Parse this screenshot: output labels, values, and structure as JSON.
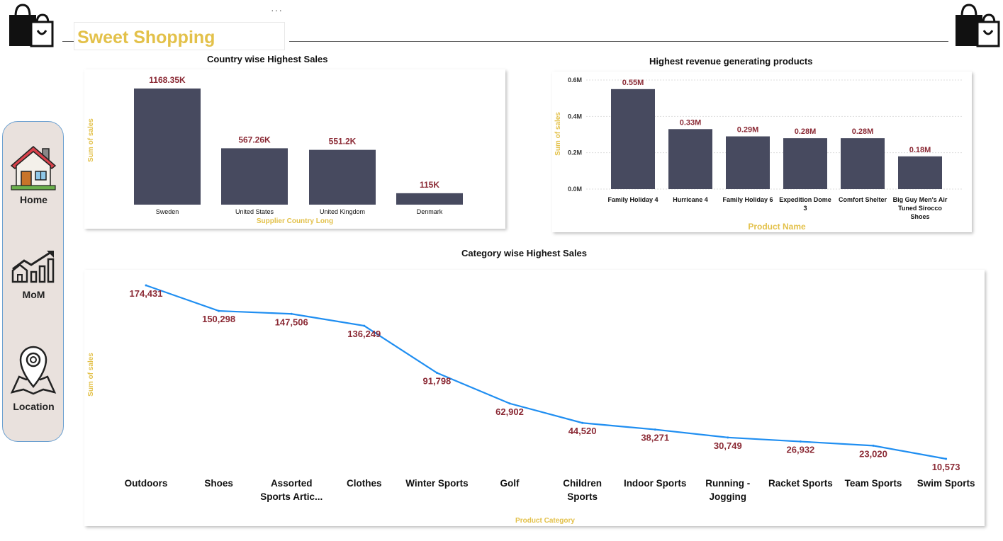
{
  "header": {
    "title": "Sweet Shopping",
    "more_label": "···",
    "bag_icon": "shopping-bag-icon"
  },
  "nav": {
    "items": [
      {
        "label": "Home",
        "icon": "house-icon"
      },
      {
        "label": "MoM",
        "icon": "growth-chart-icon"
      },
      {
        "label": "Location",
        "icon": "map-pin-icon"
      }
    ]
  },
  "chart_data": [
    {
      "type": "bar",
      "title": "Country wise Highest Sales",
      "xlabel": "Supplier Country Long",
      "ylabel": "Sum of sales",
      "categories": [
        "Sweden",
        "United States",
        "United Kingdom",
        "Denmark"
      ],
      "values": [
        1168.35,
        567.26,
        551.2,
        115
      ],
      "data_labels": [
        "1168.35K",
        "567.26K",
        "551.2K",
        "115K"
      ],
      "ylim": [
        0,
        1168.35
      ],
      "bar_color": "#474a5f",
      "label_color": "#8b2a35"
    },
    {
      "type": "bar",
      "title": "Highest revenue generating products",
      "xlabel": "Product Name",
      "ylabel": "Sum of sales",
      "categories": [
        "Family Holiday 4",
        "Hurricane 4",
        "Family Holiday 6",
        "Expedition Dome 3",
        "Comfort Shelter",
        "Big Guy Men's Air Tuned Sirocco Shoes"
      ],
      "category_lines": [
        [
          "Family Holiday 4"
        ],
        [
          "Hurricane 4"
        ],
        [
          "Family Holiday 6"
        ],
        [
          "Expedition Dome",
          "3"
        ],
        [
          "Comfort Shelter"
        ],
        [
          "Big Guy Men's Air",
          "Tuned Sirocco",
          "Shoes"
        ]
      ],
      "values": [
        0.55,
        0.33,
        0.29,
        0.28,
        0.28,
        0.18
      ],
      "data_labels": [
        "0.55M",
        "0.33M",
        "0.29M",
        "0.28M",
        "0.28M",
        "0.18M"
      ],
      "yticks": [
        0,
        0.2,
        0.4,
        0.6
      ],
      "ytick_labels": [
        "0.0M",
        "0.2M",
        "0.4M",
        "0.6M"
      ],
      "ylim": [
        0,
        0.6
      ],
      "grid": true,
      "bar_color": "#474a5f",
      "label_color": "#8b2a35"
    },
    {
      "type": "line",
      "title": "Category wise Highest Sales",
      "xlabel": "Product Category",
      "ylabel": "Sum of sales",
      "categories": [
        "Outdoors",
        "Shoes",
        "Assorted Sports Artic...",
        "Clothes",
        "Winter Sports",
        "Golf",
        "Children Sports",
        "Indoor Sports",
        "Running - Jogging",
        "Racket Sports",
        "Team Sports",
        "Swim Sports"
      ],
      "category_lines": [
        [
          "Outdoors"
        ],
        [
          "Shoes"
        ],
        [
          "Assorted",
          "Sports Artic..."
        ],
        [
          "Clothes"
        ],
        [
          "Winter Sports"
        ],
        [
          "Golf"
        ],
        [
          "Children",
          "Sports"
        ],
        [
          "Indoor Sports"
        ],
        [
          "Running -",
          "Jogging"
        ],
        [
          "Racket Sports"
        ],
        [
          "Team Sports"
        ],
        [
          "Swim Sports"
        ]
      ],
      "values": [
        174431,
        150298,
        147506,
        136249,
        91798,
        62902,
        44520,
        38271,
        30749,
        26932,
        23020,
        10573
      ],
      "data_labels": [
        "174,431",
        "150,298",
        "147,506",
        "136,249",
        "91,798",
        "62,902",
        "44,520",
        "38,271",
        "30,749",
        "26,932",
        "23,020",
        "10,573"
      ],
      "ylim": [
        0,
        180000
      ],
      "line_color": "#1f8ef1",
      "label_color": "#8b2a35"
    }
  ]
}
